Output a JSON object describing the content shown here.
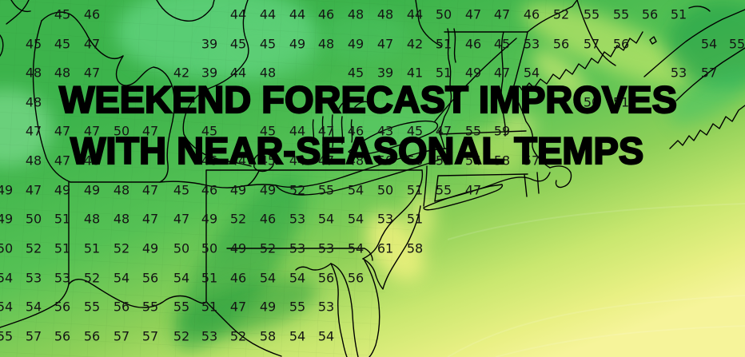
{
  "headline": {
    "line1": "WEEKEND FORECAST IMPROVES",
    "line2": "WITH NEAR-SEASONAL TEMPS"
  },
  "palette": {
    "green_deep": "#22a042",
    "green_mid": "#3cb34b",
    "green_core": "#55c154",
    "green_bright": "#5fd27c",
    "green_mint": "#7edd90",
    "yellow_green": "#a9dc5a",
    "yellow_band": "#c9e76f",
    "yellow_coast": "#e9f07c",
    "yellow_pale": "#f6f49a",
    "border": "#000000",
    "county_line": "#2f6b2f",
    "number_color": "#141414",
    "headline_color": "#000000"
  },
  "temps": [
    [
      78,
      18,
      45
    ],
    [
      115,
      18,
      46
    ],
    [
      298,
      18,
      44
    ],
    [
      335,
      18,
      44
    ],
    [
      372,
      18,
      44
    ],
    [
      408,
      18,
      46
    ],
    [
      445,
      18,
      48
    ],
    [
      482,
      18,
      48
    ],
    [
      519,
      18,
      44
    ],
    [
      555,
      18,
      50
    ],
    [
      592,
      18,
      47
    ],
    [
      628,
      18,
      47
    ],
    [
      665,
      18,
      46
    ],
    [
      702,
      18,
      52
    ],
    [
      740,
      18,
      55
    ],
    [
      777,
      18,
      55
    ],
    [
      813,
      18,
      56
    ],
    [
      849,
      18,
      51
    ],
    [
      42,
      55,
      45
    ],
    [
      78,
      55,
      45
    ],
    [
      115,
      55,
      47
    ],
    [
      262,
      55,
      39
    ],
    [
      298,
      55,
      45
    ],
    [
      335,
      55,
      45
    ],
    [
      372,
      55,
      49
    ],
    [
      408,
      55,
      48
    ],
    [
      445,
      55,
      49
    ],
    [
      482,
      55,
      47
    ],
    [
      519,
      55,
      42
    ],
    [
      555,
      55,
      51
    ],
    [
      592,
      55,
      46
    ],
    [
      628,
      55,
      45
    ],
    [
      665,
      55,
      53
    ],
    [
      702,
      55,
      56
    ],
    [
      740,
      55,
      57
    ],
    [
      777,
      55,
      56
    ],
    [
      887,
      55,
      54
    ],
    [
      922,
      55,
      55
    ],
    [
      42,
      91,
      48
    ],
    [
      78,
      91,
      48
    ],
    [
      115,
      91,
      47
    ],
    [
      227,
      91,
      42
    ],
    [
      262,
      91,
      39
    ],
    [
      298,
      91,
      44
    ],
    [
      335,
      91,
      48
    ],
    [
      445,
      91,
      45
    ],
    [
      482,
      91,
      39
    ],
    [
      519,
      91,
      41
    ],
    [
      555,
      91,
      51
    ],
    [
      592,
      91,
      49
    ],
    [
      628,
      91,
      47
    ],
    [
      665,
      91,
      54
    ],
    [
      849,
      91,
      53
    ],
    [
      887,
      91,
      57
    ],
    [
      42,
      128,
      48
    ],
    [
      740,
      128,
      50
    ],
    [
      777,
      128,
      51
    ],
    [
      42,
      164,
      47
    ],
    [
      78,
      164,
      47
    ],
    [
      115,
      164,
      47
    ],
    [
      152,
      164,
      50
    ],
    [
      188,
      164,
      47
    ],
    [
      262,
      164,
      45
    ],
    [
      335,
      164,
      45
    ],
    [
      372,
      164,
      44
    ],
    [
      408,
      164,
      47
    ],
    [
      445,
      164,
      46
    ],
    [
      482,
      164,
      43
    ],
    [
      519,
      164,
      45
    ],
    [
      555,
      164,
      47
    ],
    [
      592,
      164,
      55
    ],
    [
      628,
      164,
      59
    ],
    [
      42,
      201,
      48
    ],
    [
      78,
      201,
      47
    ],
    [
      115,
      201,
      48
    ],
    [
      262,
      201,
      46
    ],
    [
      298,
      201,
      44
    ],
    [
      335,
      201,
      45
    ],
    [
      372,
      201,
      44
    ],
    [
      408,
      201,
      47
    ],
    [
      445,
      201,
      48
    ],
    [
      482,
      201,
      50
    ],
    [
      519,
      201,
      56
    ],
    [
      555,
      201,
      52
    ],
    [
      592,
      201,
      54
    ],
    [
      628,
      201,
      58
    ],
    [
      665,
      201,
      57
    ],
    [
      6,
      238,
      49
    ],
    [
      42,
      238,
      47
    ],
    [
      78,
      238,
      49
    ],
    [
      115,
      238,
      49
    ],
    [
      152,
      238,
      48
    ],
    [
      188,
      238,
      47
    ],
    [
      227,
      238,
      45
    ],
    [
      262,
      238,
      46
    ],
    [
      298,
      238,
      49
    ],
    [
      335,
      238,
      49
    ],
    [
      372,
      238,
      52
    ],
    [
      408,
      238,
      55
    ],
    [
      445,
      238,
      54
    ],
    [
      482,
      238,
      50
    ],
    [
      519,
      238,
      51
    ],
    [
      555,
      238,
      55
    ],
    [
      592,
      238,
      47
    ],
    [
      6,
      274,
      49
    ],
    [
      42,
      274,
      50
    ],
    [
      78,
      274,
      51
    ],
    [
      115,
      274,
      48
    ],
    [
      152,
      274,
      48
    ],
    [
      188,
      274,
      47
    ],
    [
      227,
      274,
      47
    ],
    [
      262,
      274,
      49
    ],
    [
      298,
      274,
      52
    ],
    [
      335,
      274,
      46
    ],
    [
      372,
      274,
      53
    ],
    [
      408,
      274,
      54
    ],
    [
      445,
      274,
      54
    ],
    [
      482,
      274,
      53
    ],
    [
      519,
      274,
      51
    ],
    [
      6,
      311,
      50
    ],
    [
      42,
      311,
      52
    ],
    [
      78,
      311,
      51
    ],
    [
      115,
      311,
      51
    ],
    [
      152,
      311,
      52
    ],
    [
      188,
      311,
      49
    ],
    [
      227,
      311,
      50
    ],
    [
      262,
      311,
      50
    ],
    [
      298,
      311,
      49
    ],
    [
      335,
      311,
      52
    ],
    [
      372,
      311,
      53
    ],
    [
      408,
      311,
      53
    ],
    [
      445,
      311,
      54
    ],
    [
      482,
      311,
      61
    ],
    [
      519,
      311,
      58
    ],
    [
      6,
      348,
      54
    ],
    [
      42,
      348,
      53
    ],
    [
      78,
      348,
      53
    ],
    [
      115,
      348,
      52
    ],
    [
      152,
      348,
      54
    ],
    [
      188,
      348,
      56
    ],
    [
      227,
      348,
      54
    ],
    [
      262,
      348,
      51
    ],
    [
      298,
      348,
      46
    ],
    [
      335,
      348,
      54
    ],
    [
      372,
      348,
      54
    ],
    [
      408,
      348,
      56
    ],
    [
      445,
      348,
      56
    ],
    [
      6,
      384,
      54
    ],
    [
      42,
      384,
      54
    ],
    [
      78,
      384,
      56
    ],
    [
      115,
      384,
      55
    ],
    [
      152,
      384,
      56
    ],
    [
      188,
      384,
      55
    ],
    [
      227,
      384,
      55
    ],
    [
      262,
      384,
      51
    ],
    [
      298,
      384,
      47
    ],
    [
      335,
      384,
      49
    ],
    [
      372,
      384,
      55
    ],
    [
      408,
      384,
      53
    ],
    [
      6,
      421,
      55
    ],
    [
      42,
      421,
      57
    ],
    [
      78,
      421,
      56
    ],
    [
      115,
      421,
      56
    ],
    [
      152,
      421,
      57
    ],
    [
      188,
      421,
      57
    ],
    [
      227,
      421,
      52
    ],
    [
      262,
      421,
      53
    ],
    [
      298,
      421,
      52
    ],
    [
      335,
      421,
      58
    ],
    [
      372,
      421,
      54
    ],
    [
      408,
      421,
      54
    ]
  ]
}
